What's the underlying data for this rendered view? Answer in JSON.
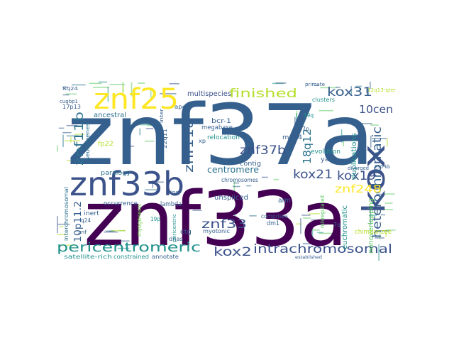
{
  "colors": {
    "background": "#ffffff",
    "purple_dark": "#440154",
    "indigo": "#3b528b",
    "slate": "#355f8d",
    "teal": "#21918c",
    "teal_dark": "#2c728e",
    "green": "#5ec962",
    "green_light": "#7ad151",
    "yellow": "#fde725",
    "yellow_green": "#b5de2b"
  },
  "words": [
    {
      "text": "znf37a"
    },
    {
      "text": "znf33a"
    },
    {
      "text": "znf33b"
    },
    {
      "text": "znf25"
    },
    {
      "text": "kox"
    },
    {
      "text": "heterochromatic"
    },
    {
      "text": "pericentromeric"
    },
    {
      "text": "intrachromosomal"
    },
    {
      "text": "finished"
    },
    {
      "text": "kox31"
    },
    {
      "text": "10cen"
    },
    {
      "text": "znf11b"
    },
    {
      "text": "znf11a"
    },
    {
      "text": "znf37b"
    },
    {
      "text": "kox21"
    },
    {
      "text": "kox19"
    },
    {
      "text": "kox2"
    },
    {
      "text": "znf33"
    },
    {
      "text": "znf248"
    },
    {
      "text": "centromere"
    },
    {
      "text": "18q12"
    },
    {
      "text": "10p11.2"
    },
    {
      "text": "duplications"
    },
    {
      "text": "nonoverlapping"
    },
    {
      "text": "euchromatic"
    },
    {
      "text": "chimpanzee"
    },
    {
      "text": "multispecies"
    },
    {
      "text": "ancestral"
    },
    {
      "text": "pseudogenes"
    },
    {
      "text": "paralogy"
    },
    {
      "text": "megabase"
    },
    {
      "text": "bcr-1"
    },
    {
      "text": "relocation"
    },
    {
      "text": "contig"
    },
    {
      "text": "molt4"
    },
    {
      "text": "evolution"
    },
    {
      "text": "yacs"
    },
    {
      "text": "unspliced"
    },
    {
      "text": "chromosomes"
    },
    {
      "text": "arm"
    },
    {
      "text": "comprises"
    },
    {
      "text": "dm1"
    },
    {
      "text": "myotonic"
    },
    {
      "text": "interchromosomal"
    },
    {
      "text": "occurrence"
    },
    {
      "text": "lambda"
    },
    {
      "text": "inert"
    },
    {
      "text": "dnas"
    },
    {
      "text": "ctg"
    },
    {
      "text": "satellite-rich"
    },
    {
      "text": "constrained"
    },
    {
      "text": "annotate"
    },
    {
      "text": "established"
    },
    {
      "text": "diverged"
    },
    {
      "text": "misregulated"
    },
    {
      "text": "primate"
    },
    {
      "text": "clusters"
    },
    {
      "text": "17p13"
    },
    {
      "text": "8q24"
    },
    {
      "text": "cugbp1"
    },
    {
      "text": "fp22"
    },
    {
      "text": "22q11"
    },
    {
      "text": "ape"
    },
    {
      "text": "inter"
    },
    {
      "text": "xp"
    },
    {
      "text": "7p"
    },
    {
      "text": "7q"
    },
    {
      "text": "19p"
    },
    {
      "text": "q24"
    },
    {
      "text": "znf"
    },
    {
      "text": "pericentric"
    },
    {
      "text": "250-kb"
    },
    {
      "text": "19q"
    },
    {
      "text": "12q13-qter"
    },
    {
      "text": "ring"
    },
    {
      "text": "myogenesis"
    }
  ]
}
